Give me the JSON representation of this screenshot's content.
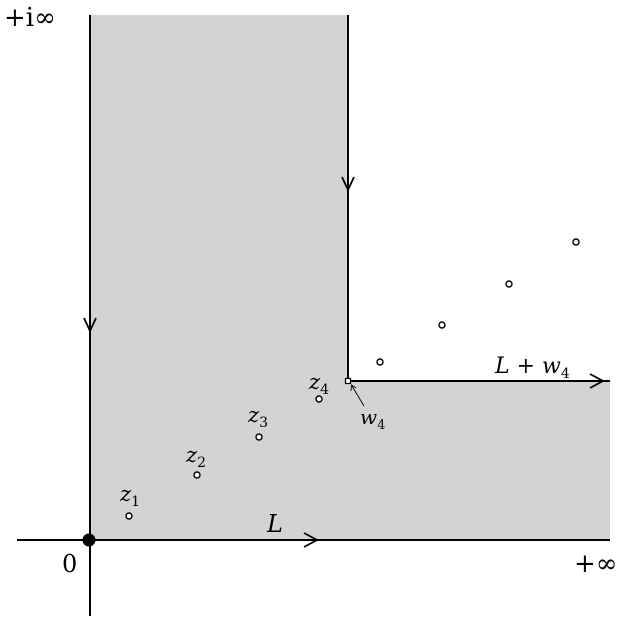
{
  "labels": {
    "top_left": "+i∞",
    "bottom_right": "+∞",
    "origin": "0",
    "contour_L": "L",
    "contour_L_shift": {
      "base": "L + ",
      "var": "w",
      "sub": "4"
    },
    "point_w4": {
      "var": "w",
      "sub": "4"
    },
    "z1": {
      "var": "z",
      "sub": "1"
    },
    "z2": {
      "var": "z",
      "sub": "2"
    },
    "z3": {
      "var": "z",
      "sub": "3"
    },
    "z4": {
      "var": "z",
      "sub": "4"
    }
  },
  "colors": {
    "region_fill": "#d3d3d3",
    "stroke": "#000000",
    "background": "#ffffff"
  }
}
